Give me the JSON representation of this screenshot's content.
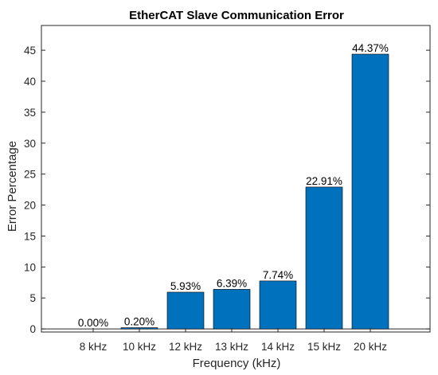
{
  "chart_data": {
    "type": "bar",
    "title": "EtherCAT Slave Communication Error",
    "xlabel": "Frequency (kHz)",
    "ylabel": "Error Percentage",
    "categories": [
      "8 kHz",
      "10 kHz",
      "12 kHz",
      "13 kHz",
      "14 kHz",
      "15 kHz",
      "20 kHz"
    ],
    "values": [
      0.0,
      0.2,
      5.93,
      6.39,
      7.74,
      22.91,
      44.37
    ],
    "data_labels": [
      "0.00%",
      "0.20%",
      "5.93%",
      "6.39%",
      "7.74%",
      "22.91%",
      "44.37%"
    ],
    "ylim": [
      -0.5,
      49
    ],
    "yticks": [
      0,
      5,
      10,
      15,
      20,
      25,
      30,
      35,
      40,
      45
    ],
    "bar_color": "#0072BD",
    "grid": false,
    "legend": "none"
  }
}
